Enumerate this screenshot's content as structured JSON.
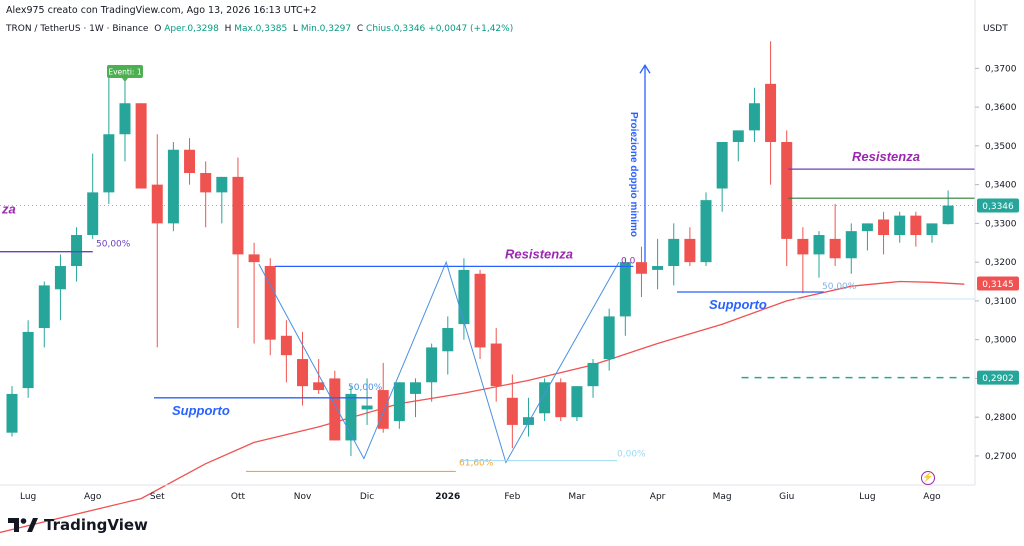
{
  "header": {
    "author_line": "Alex975 creato con TradingView.com, Ago 13, 2026 16:13 UTC+2",
    "symbol": "TRON / TetherUS · 1W · Binance",
    "open_label": "O",
    "open": "Aper.0,3298",
    "high_label": "H",
    "high": "Max.0,3385",
    "low_label": "L",
    "low": "Min.0,3297",
    "close_label": "C",
    "close": "Chius.0,3346",
    "change": "+0,0047 (+1,42%)",
    "currency": "USDT"
  },
  "brand": {
    "name": "TradingView",
    "icon": "tradingview-logo-icon"
  },
  "colors": {
    "up": "#26a69a",
    "down": "#ef5350",
    "ma": "#f05252",
    "blue": "#2962ff",
    "purple": "#6a3fbf",
    "orange": "#f7a433",
    "green": "#4caf50",
    "teal_dash": "#26a69a"
  },
  "chart_data": {
    "type": "candlestick",
    "timeframe": "1W",
    "y_axis": {
      "ticks": [
        "0,3700",
        "0,3600",
        "0,3500",
        "0,3400",
        "0,3300",
        "0,3200",
        "0,3100",
        "0,3000",
        "0,2900",
        "0,2800",
        "0,2700"
      ],
      "tick_values": [
        0.37,
        0.36,
        0.35,
        0.34,
        0.33,
        0.32,
        0.31,
        0.3,
        0.29,
        0.28,
        0.27
      ],
      "range": [
        0.2625,
        0.3768
      ]
    },
    "x_axis": {
      "labels": [
        "Lug",
        "Ago",
        "Set",
        "Ott",
        "Nov",
        "Dic",
        "2026",
        "Feb",
        "Mar",
        "Apr",
        "Mag",
        "Giu",
        "Lug",
        "Ago"
      ],
      "label_candle_index": [
        1,
        5,
        9,
        14,
        18,
        22,
        27,
        31,
        35,
        40,
        44,
        48,
        53,
        57
      ]
    },
    "candles": [
      {
        "o": 0.276,
        "h": 0.288,
        "l": 0.275,
        "c": 0.286
      },
      {
        "o": 0.2875,
        "h": 0.305,
        "l": 0.285,
        "c": 0.302
      },
      {
        "o": 0.303,
        "h": 0.315,
        "l": 0.298,
        "c": 0.314
      },
      {
        "o": 0.313,
        "h": 0.322,
        "l": 0.305,
        "c": 0.319
      },
      {
        "o": 0.319,
        "h": 0.329,
        "l": 0.315,
        "c": 0.327
      },
      {
        "o": 0.327,
        "h": 0.348,
        "l": 0.326,
        "c": 0.338
      },
      {
        "o": 0.338,
        "h": 0.368,
        "l": 0.335,
        "c": 0.353
      },
      {
        "o": 0.353,
        "h": 0.37,
        "l": 0.346,
        "c": 0.361
      },
      {
        "o": 0.361,
        "h": 0.361,
        "l": 0.339,
        "c": 0.339
      },
      {
        "o": 0.34,
        "h": 0.353,
        "l": 0.298,
        "c": 0.33
      },
      {
        "o": 0.33,
        "h": 0.351,
        "l": 0.328,
        "c": 0.349
      },
      {
        "o": 0.349,
        "h": 0.352,
        "l": 0.34,
        "c": 0.343
      },
      {
        "o": 0.343,
        "h": 0.346,
        "l": 0.329,
        "c": 0.338
      },
      {
        "o": 0.338,
        "h": 0.342,
        "l": 0.33,
        "c": 0.342
      },
      {
        "o": 0.342,
        "h": 0.347,
        "l": 0.303,
        "c": 0.322
      },
      {
        "o": 0.322,
        "h": 0.325,
        "l": 0.299,
        "c": 0.32
      },
      {
        "o": 0.319,
        "h": 0.321,
        "l": 0.296,
        "c": 0.3
      },
      {
        "o": 0.301,
        "h": 0.305,
        "l": 0.289,
        "c": 0.296
      },
      {
        "o": 0.295,
        "h": 0.302,
        "l": 0.283,
        "c": 0.288
      },
      {
        "o": 0.289,
        "h": 0.295,
        "l": 0.286,
        "c": 0.287
      },
      {
        "o": 0.29,
        "h": 0.292,
        "l": 0.274,
        "c": 0.274
      },
      {
        "o": 0.274,
        "h": 0.288,
        "l": 0.27,
        "c": 0.286
      },
      {
        "o": 0.282,
        "h": 0.29,
        "l": 0.278,
        "c": 0.283
      },
      {
        "o": 0.287,
        "h": 0.294,
        "l": 0.276,
        "c": 0.277
      },
      {
        "o": 0.279,
        "h": 0.289,
        "l": 0.277,
        "c": 0.289
      },
      {
        "o": 0.286,
        "h": 0.29,
        "l": 0.28,
        "c": 0.289
      },
      {
        "o": 0.289,
        "h": 0.299,
        "l": 0.284,
        "c": 0.298
      },
      {
        "o": 0.297,
        "h": 0.306,
        "l": 0.291,
        "c": 0.303
      },
      {
        "o": 0.304,
        "h": 0.321,
        "l": 0.3,
        "c": 0.318
      },
      {
        "o": 0.317,
        "h": 0.318,
        "l": 0.295,
        "c": 0.298
      },
      {
        "o": 0.299,
        "h": 0.303,
        "l": 0.284,
        "c": 0.288
      },
      {
        "o": 0.285,
        "h": 0.291,
        "l": 0.272,
        "c": 0.278
      },
      {
        "o": 0.278,
        "h": 0.285,
        "l": 0.275,
        "c": 0.28
      },
      {
        "o": 0.281,
        "h": 0.29,
        "l": 0.279,
        "c": 0.289
      },
      {
        "o": 0.289,
        "h": 0.29,
        "l": 0.279,
        "c": 0.28
      },
      {
        "o": 0.28,
        "h": 0.288,
        "l": 0.279,
        "c": 0.288
      },
      {
        "o": 0.288,
        "h": 0.295,
        "l": 0.285,
        "c": 0.294
      },
      {
        "o": 0.295,
        "h": 0.308,
        "l": 0.292,
        "c": 0.306
      },
      {
        "o": 0.306,
        "h": 0.321,
        "l": 0.301,
        "c": 0.32
      },
      {
        "o": 0.32,
        "h": 0.324,
        "l": 0.311,
        "c": 0.317
      },
      {
        "o": 0.318,
        "h": 0.326,
        "l": 0.313,
        "c": 0.319
      },
      {
        "o": 0.319,
        "h": 0.33,
        "l": 0.314,
        "c": 0.326
      },
      {
        "o": 0.326,
        "h": 0.329,
        "l": 0.319,
        "c": 0.32
      },
      {
        "o": 0.32,
        "h": 0.338,
        "l": 0.319,
        "c": 0.336
      },
      {
        "o": 0.339,
        "h": 0.35,
        "l": 0.333,
        "c": 0.351
      },
      {
        "o": 0.351,
        "h": 0.354,
        "l": 0.346,
        "c": 0.354
      },
      {
        "o": 0.354,
        "h": 0.365,
        "l": 0.351,
        "c": 0.361
      },
      {
        "o": 0.366,
        "h": 0.377,
        "l": 0.34,
        "c": 0.351
      },
      {
        "o": 0.351,
        "h": 0.354,
        "l": 0.319,
        "c": 0.326
      },
      {
        "o": 0.326,
        "h": 0.329,
        "l": 0.312,
        "c": 0.322
      },
      {
        "o": 0.322,
        "h": 0.328,
        "l": 0.316,
        "c": 0.327
      },
      {
        "o": 0.326,
        "h": 0.335,
        "l": 0.319,
        "c": 0.321
      },
      {
        "o": 0.321,
        "h": 0.33,
        "l": 0.317,
        "c": 0.328
      },
      {
        "o": 0.328,
        "h": 0.33,
        "l": 0.323,
        "c": 0.33
      },
      {
        "o": 0.331,
        "h": 0.333,
        "l": 0.322,
        "c": 0.327
      },
      {
        "o": 0.327,
        "h": 0.333,
        "l": 0.325,
        "c": 0.332
      },
      {
        "o": 0.332,
        "h": 0.333,
        "l": 0.324,
        "c": 0.327
      },
      {
        "o": 0.327,
        "h": 0.33,
        "l": 0.325,
        "c": 0.33
      },
      {
        "o": 0.3298,
        "h": 0.3385,
        "l": 0.3297,
        "c": 0.3346
      }
    ],
    "moving_average": {
      "color": "#f05252",
      "points": [
        {
          "i": -1,
          "v": 0.25
        },
        {
          "i": 8,
          "v": 0.259
        },
        {
          "i": 12,
          "v": 0.268
        },
        {
          "i": 15,
          "v": 0.2735
        },
        {
          "i": 19,
          "v": 0.2775
        },
        {
          "i": 24,
          "v": 0.2835
        },
        {
          "i": 28,
          "v": 0.2862
        },
        {
          "i": 32,
          "v": 0.2895
        },
        {
          "i": 36,
          "v": 0.2935
        },
        {
          "i": 40,
          "v": 0.299
        },
        {
          "i": 44,
          "v": 0.304
        },
        {
          "i": 48,
          "v": 0.31
        },
        {
          "i": 52,
          "v": 0.3138
        },
        {
          "i": 55,
          "v": 0.315
        },
        {
          "i": 57,
          "v": 0.3148
        },
        {
          "i": 59,
          "v": 0.3143
        }
      ]
    },
    "annotations": {
      "labels": {
        "resistenza_mid": "Resistenza",
        "supporto_left": "Supporto",
        "supporto_right": "Supporto",
        "resistenza_right": "Resistenza",
        "cut_label": "za",
        "fib_50_left": "50,00%",
        "fib_50_mid": "50,00%",
        "fib_50_right": "50,00%",
        "fib_618": "61,60%",
        "fib_0": "0,00%",
        "mid_zero": "0,0",
        "projection": "Proiezione doppio minimo",
        "events": "Eventi: 1"
      },
      "price_tags": [
        {
          "value": 0.3346,
          "label": "0,3346",
          "color": "#26a69a"
        },
        {
          "value": 0.3145,
          "label": "0,3145",
          "color": "#f05252"
        },
        {
          "value": 0.2902,
          "label": "0,2902",
          "color": "#26a69a"
        }
      ],
      "levels": {
        "resistance_mid": 0.3189,
        "resistance_right": 0.344,
        "green_right": 0.3365,
        "support_left": 0.285,
        "support_right": 0.3123,
        "fib_left_50": 0.3227,
        "fib_orange": 0.266,
        "fib_0": 0.2688,
        "fib_right_50": 0.3105,
        "dashed_teal": 0.2902,
        "projection_from": 0.32,
        "projection_to": 0.3708
      },
      "w_pattern": [
        {
          "i": 15.3,
          "v": 0.3195
        },
        {
          "i": 21.8,
          "v": 0.2693
        },
        {
          "i": 26.9,
          "v": 0.32
        },
        {
          "i": 30.6,
          "v": 0.2683
        },
        {
          "i": 37.6,
          "v": 0.32
        }
      ]
    }
  }
}
